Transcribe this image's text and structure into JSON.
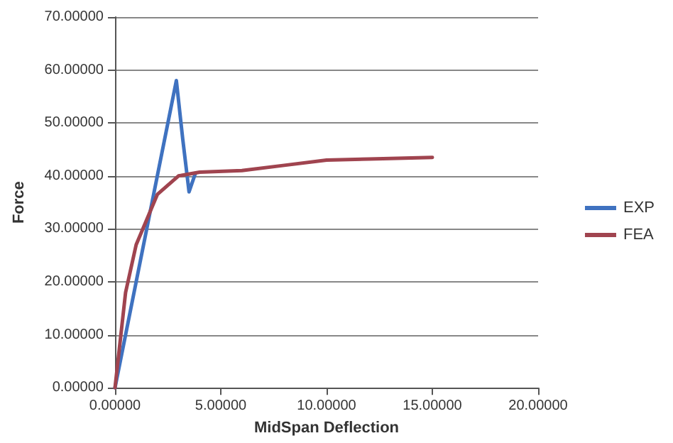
{
  "chart_data": {
    "type": "line",
    "xlabel": "MidSpan Deflection",
    "ylabel": "Force",
    "xlim": [
      0,
      20
    ],
    "xticks": [
      {
        "value": 0,
        "label": "0.00000"
      },
      {
        "value": 5,
        "label": "5.00000"
      },
      {
        "value": 10,
        "label": "10.00000"
      },
      {
        "value": 15,
        "label": "15.00000"
      },
      {
        "value": 20,
        "label": "20.00000"
      }
    ],
    "ylim": [
      0,
      70
    ],
    "yticks": [
      {
        "value": 0,
        "label": "0.00000"
      },
      {
        "value": 10,
        "label": "10.00000"
      },
      {
        "value": 20,
        "label": "20.00000"
      },
      {
        "value": 30,
        "label": "30.00000"
      },
      {
        "value": 40,
        "label": "40.00000"
      },
      {
        "value": 50,
        "label": "50.00000"
      },
      {
        "value": 60,
        "label": "60.00000"
      },
      {
        "value": 70,
        "label": "70.00000"
      }
    ],
    "grid": "y",
    "legend": "right",
    "marker": "none",
    "line_style": "solid",
    "series": [
      {
        "name": "EXP",
        "color": "#3f72c0",
        "x": [
          0,
          1,
          2,
          2.9,
          3.2,
          3.5,
          3.8
        ],
        "values": [
          0,
          20,
          40,
          58,
          47,
          37,
          40.5
        ]
      },
      {
        "name": "FEA",
        "color": "#a0444f",
        "x": [
          0,
          0.5,
          1,
          2,
          3,
          4,
          6,
          8,
          10,
          12,
          15
        ],
        "values": [
          0,
          18,
          27,
          36.5,
          40,
          40.7,
          41,
          42,
          43,
          43.2,
          43.5
        ]
      }
    ]
  }
}
